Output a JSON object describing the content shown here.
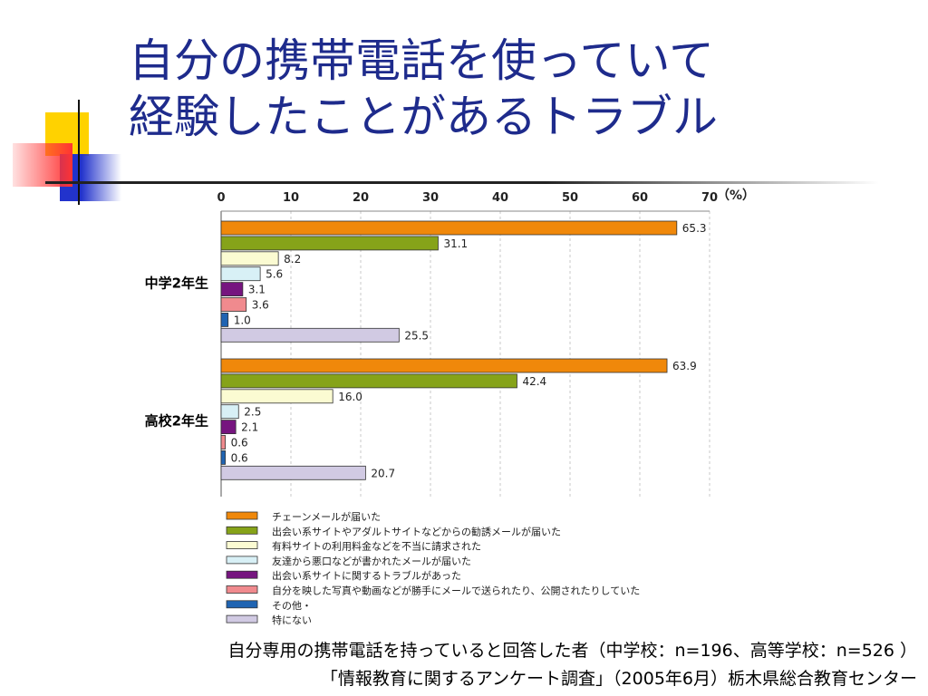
{
  "slide": {
    "title_line1": "自分の携帯電話を使っていて",
    "title_line2": "経験したことがあるトラブル",
    "footnote1": "自分専用の携帯電話を持っていると回答した者（中学校：n=196、高等学校：n=526 ）",
    "footnote2": "「情報教育に関するアンケート調査」（2005年6月）栃木県総合教育センター",
    "accent_colors": {
      "title": "#1e2b8c",
      "yellow": "#ffd200",
      "red": "#ff3333",
      "blue": "#2233cc"
    }
  },
  "chart_data": {
    "type": "bar",
    "orientation": "horizontal",
    "unit_label": "（%）",
    "xlim": [
      0,
      70
    ],
    "ticks": [
      0,
      10,
      20,
      30,
      40,
      50,
      60,
      70
    ],
    "grid": true,
    "legend_position": "bottom",
    "categories": [
      "中学2年生",
      "高校2年生"
    ],
    "series": [
      {
        "name": "チェーンメールが届いた",
        "color": "#f0880a",
        "values": [
          65.3,
          63.9
        ]
      },
      {
        "name": "出会い系サイトやアダルトサイトなどからの勧誘メールが届いた",
        "color": "#86a319",
        "values": [
          31.1,
          42.4
        ]
      },
      {
        "name": "有料サイトの利用料金などを不当に請求された",
        "color": "#fbfbd2",
        "values": [
          8.2,
          16.0
        ]
      },
      {
        "name": "友達から悪口などが書かれたメールが届いた",
        "color": "#d8f0f6",
        "values": [
          5.6,
          2.5
        ]
      },
      {
        "name": "出会い系サイトに関するトラブルがあった",
        "color": "#76157f",
        "values": [
          3.1,
          2.1
        ]
      },
      {
        "name": "自分を映した写真や動画などが勝手にメールで送られたり、公開されたりしていた",
        "color": "#f08a8e",
        "values": [
          3.6,
          0.6
        ]
      },
      {
        "name": "その他・",
        "color": "#1f64b2",
        "values": [
          1.0,
          0.6
        ]
      },
      {
        "name": "特にない",
        "color": "#d1cae3",
        "values": [
          25.5,
          20.7
        ]
      }
    ]
  }
}
